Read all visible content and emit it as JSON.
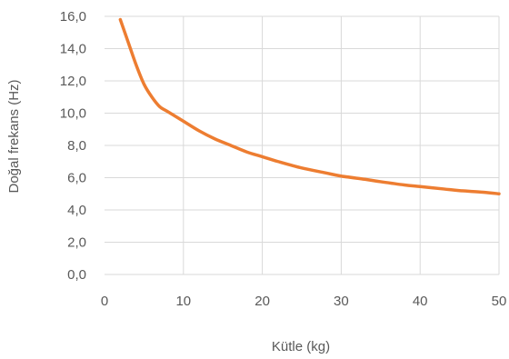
{
  "chart_data": {
    "type": "line",
    "xlabel": "Kütle (kg)",
    "ylabel": "Doğal frekans (Hz)",
    "xlim": [
      0,
      50
    ],
    "ylim": [
      0,
      16
    ],
    "x_ticks": [
      0,
      10,
      20,
      30,
      40,
      50
    ],
    "x_tick_labels": [
      "0",
      "10",
      "20",
      "30",
      "40",
      "50"
    ],
    "y_ticks": [
      0,
      2,
      4,
      6,
      8,
      10,
      12,
      14,
      16
    ],
    "y_tick_labels": [
      "0,0",
      "2,0",
      "4,0",
      "6,0",
      "8,0",
      "10,0",
      "12,0",
      "14,0",
      "16,0"
    ],
    "grid": true,
    "legend": "none",
    "colors": {
      "line": "#ED7D31",
      "grid": "#D9D9D9",
      "text": "#595959"
    },
    "series": [
      {
        "x": [
          2,
          3,
          4,
          5,
          6,
          7,
          8,
          10,
          12,
          14,
          16,
          18,
          20,
          22,
          25,
          28,
          30,
          33,
          35,
          38,
          40,
          43,
          45,
          48,
          50
        ],
        "y": [
          15.8,
          14.4,
          13.0,
          11.8,
          11.0,
          10.4,
          10.1,
          9.5,
          8.9,
          8.4,
          8.0,
          7.6,
          7.3,
          7.0,
          6.6,
          6.3,
          6.1,
          5.9,
          5.75,
          5.55,
          5.45,
          5.3,
          5.2,
          5.1,
          5.0
        ]
      }
    ]
  }
}
